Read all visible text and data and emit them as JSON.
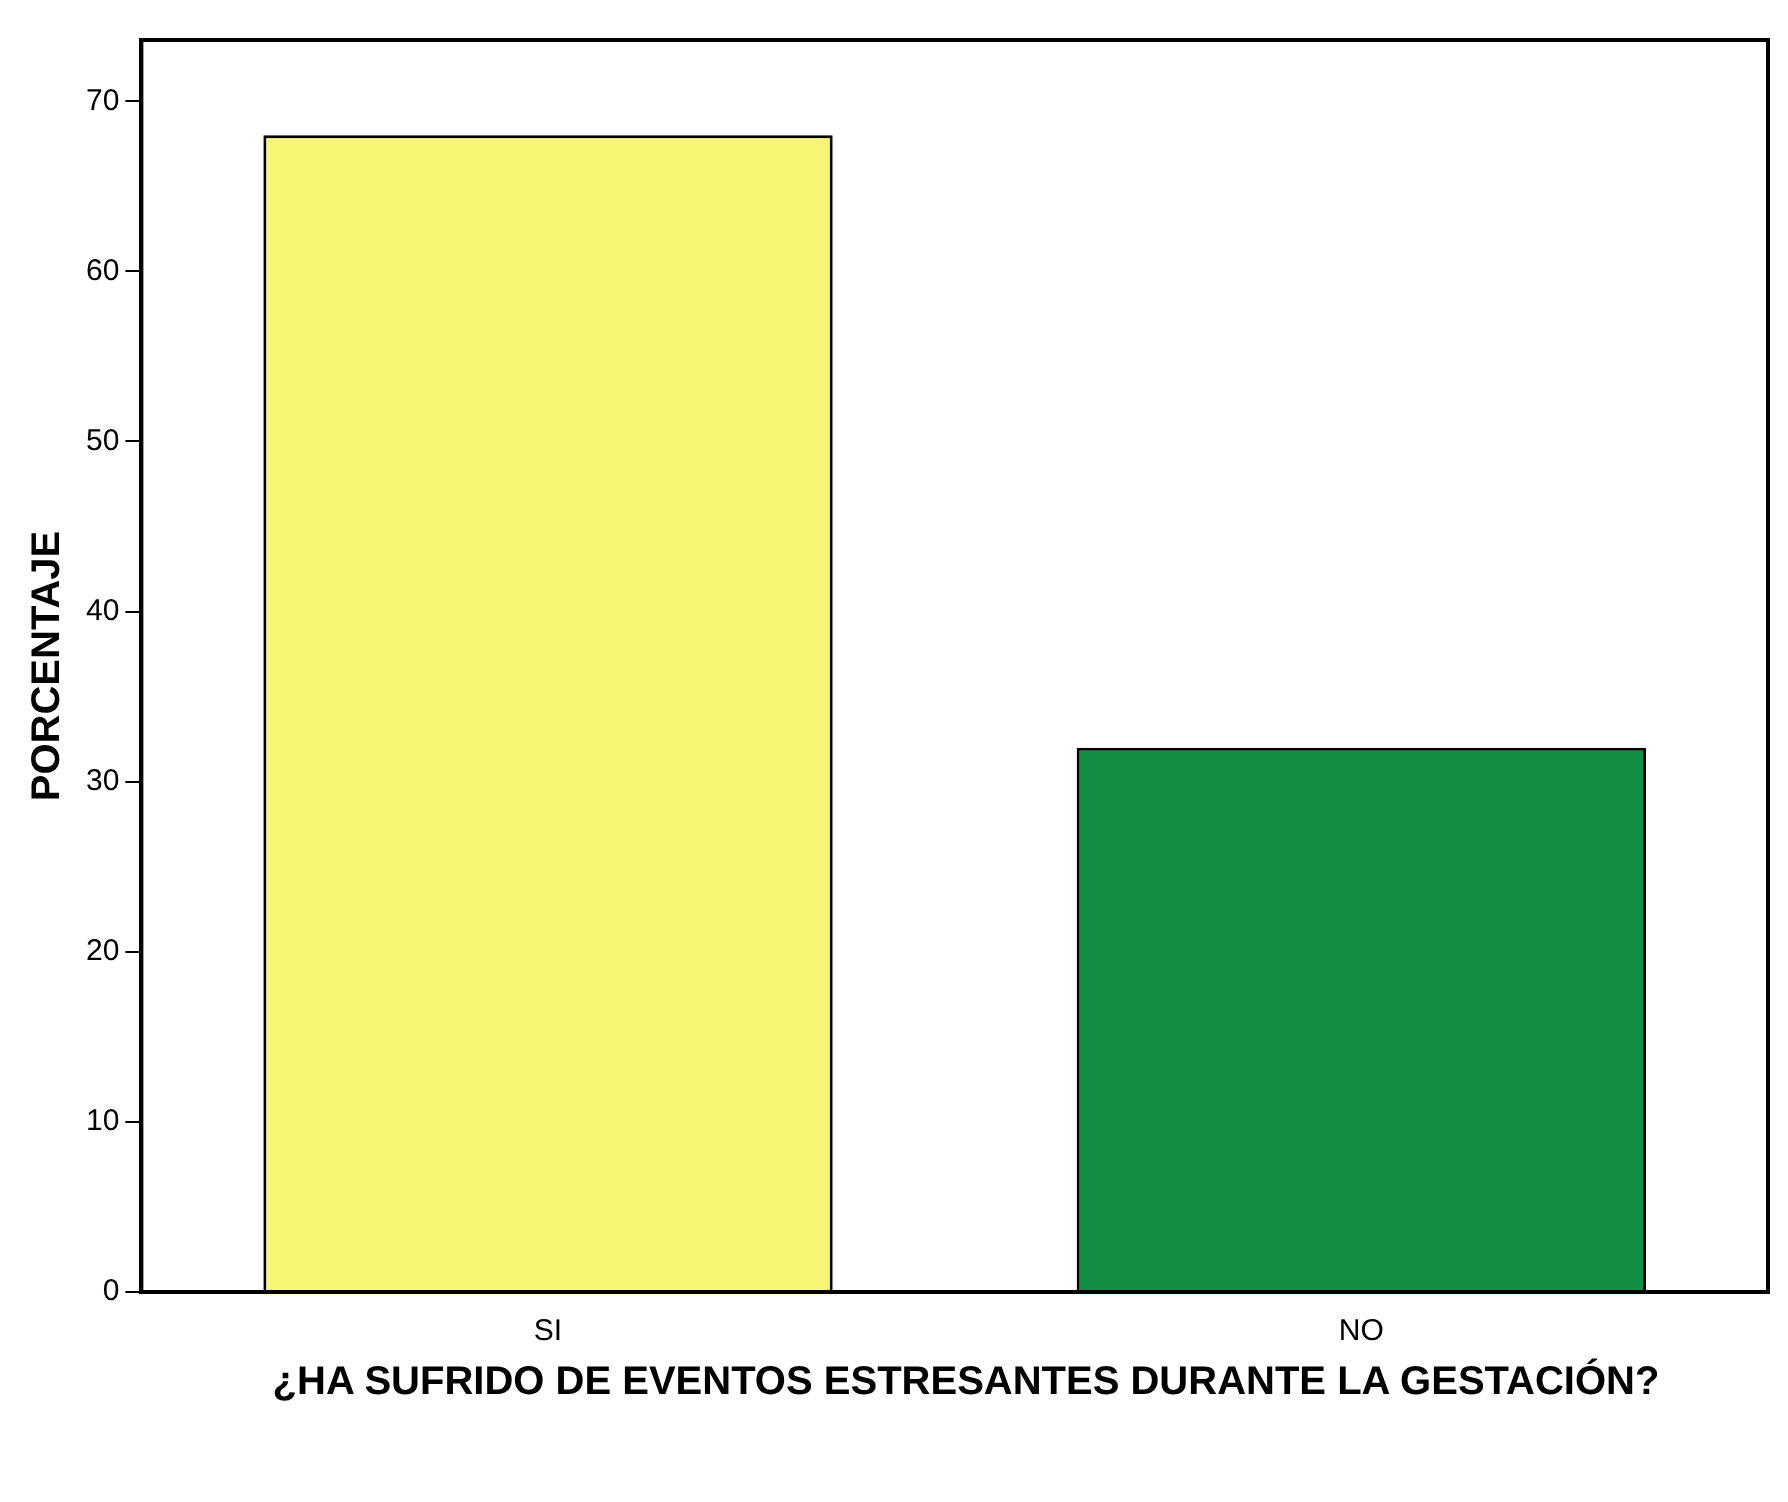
{
  "chart_data": {
    "type": "bar",
    "xlabel": "¿HA SUFRIDO DE EVENTOS ESTRESANTES DURANTE LA GESTACIÓN?",
    "ylabel": "PORCENTAJE",
    "categories": [
      "SI",
      "NO"
    ],
    "values": [
      68,
      32
    ],
    "colors": [
      "#f7f574",
      "#128f45"
    ],
    "ylim": [
      0,
      73.6
    ],
    "yticks": [
      0,
      10,
      20,
      30,
      40,
      50,
      60,
      70
    ],
    "grid": false,
    "legend": false
  }
}
